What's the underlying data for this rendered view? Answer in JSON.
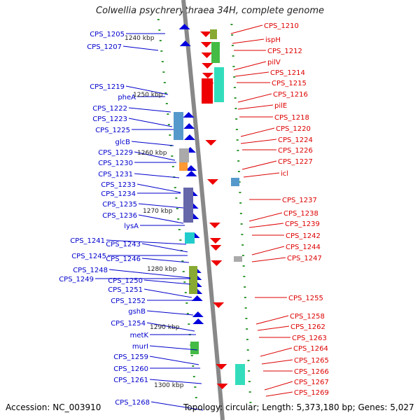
{
  "title": "Colwellia psychrerythraea 34H, complete genome",
  "footer": {
    "accession": "Accession: NC_003910",
    "summary": "Topology: circular; Length: 5,373,180 bp; Genes: 5,027"
  },
  "colors": {
    "left_label": "#0000cc",
    "right_label": "#dd0000",
    "backbone": "#888888",
    "tick": "#339933",
    "forward": "#0000dd",
    "reverse": "#ee0000"
  },
  "scale_labels": [
    "1240 kbp",
    "1250 kbp",
    "1260 kbp",
    "1270 kbp",
    "1280 kbp",
    "1290 kbp",
    "1300 kbp"
  ],
  "left_labels": [
    "CPS_1205",
    "CPS_1207",
    "CPS_1219",
    "pheA",
    "CPS_1222",
    "CPS_1223",
    "CPS_1225",
    "glcB",
    "CPS_1229",
    "CPS_1230",
    "CPS_1231",
    "CPS_1233",
    "CPS_1234",
    "CPS_1235",
    "CPS_1236",
    "lysA",
    "CPS_1241",
    "CPS_1243",
    "CPS_1245",
    "CPS_1246",
    "CPS_1248",
    "CPS_1249",
    "CPS_1250",
    "CPS_1251",
    "CPS_1252",
    "gshB",
    "CPS_1254",
    "metK",
    "murI",
    "CPS_1259",
    "CPS_1260",
    "CPS_1261",
    "CPS_1268"
  ],
  "right_labels": [
    "CPS_1210",
    "ispH",
    "CPS_1212",
    "pilV",
    "CPS_1214",
    "CPS_1215",
    "CPS_1216",
    "pilE",
    "CPS_1218",
    "CPS_1220",
    "CPS_1224",
    "CPS_1226",
    "CPS_1227",
    "icl",
    "CPS_1237",
    "CPS_1238",
    "CPS_1239",
    "CPS_1242",
    "CPS_1244",
    "CPS_1247",
    "CPS_1255",
    "CPS_1258",
    "CPS_1262",
    "CPS_1263",
    "CPS_1264",
    "CPS_1265",
    "CPS_1266",
    "CPS_1267",
    "CPS_1269"
  ]
}
